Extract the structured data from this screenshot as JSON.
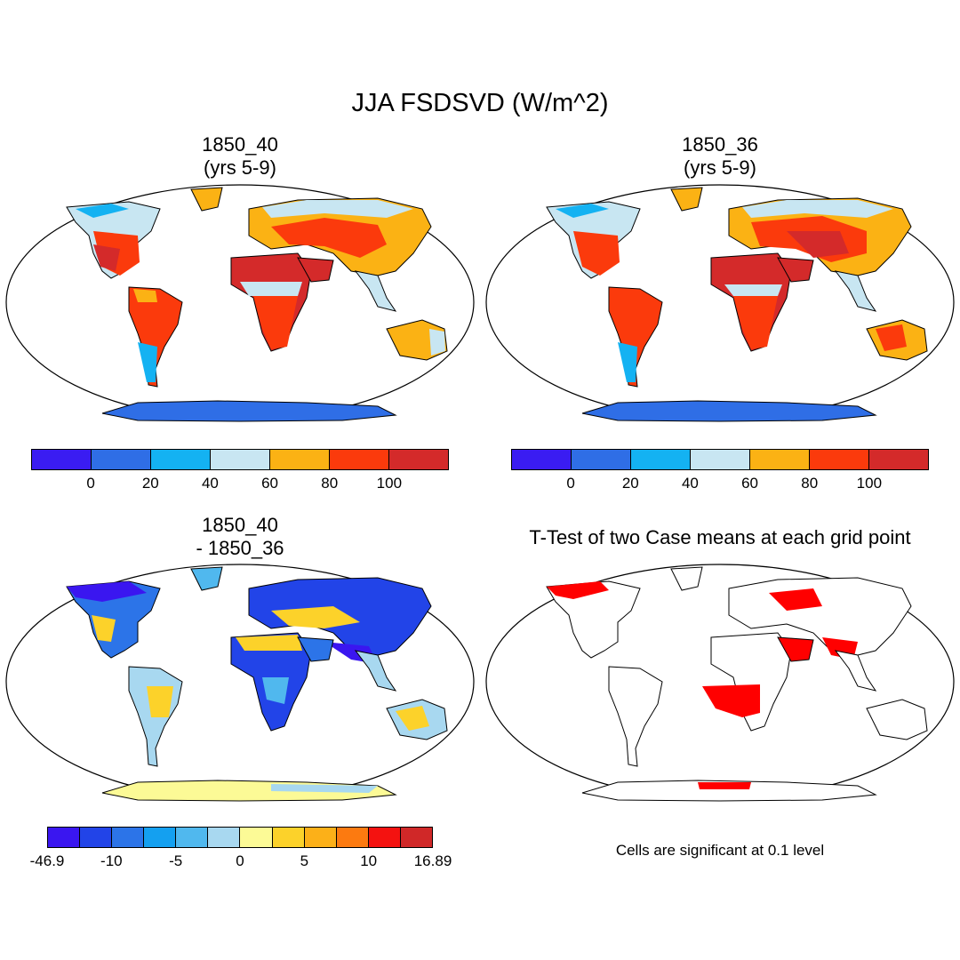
{
  "figure": {
    "title": "JJA FSDSVD (W/m^2)"
  },
  "panels": {
    "case1": {
      "title": "1850_40\n(yrs 5-9)"
    },
    "case2": {
      "title": "1850_36\n(yrs 5-9)"
    },
    "diff": {
      "title": "1850_40\n- 1850_36"
    },
    "ttest": {
      "title": "T-Test of two Case means at each grid point",
      "note": "Cells are significant at 0.1 level"
    }
  },
  "colorbars": {
    "abs": {
      "colors": [
        "#3a1cf2",
        "#2f6ee6",
        "#14b2f2",
        "#c8e6f2",
        "#fbb214",
        "#fb3a0c",
        "#d42a2a"
      ],
      "ticks": [
        "0",
        "20",
        "40",
        "60",
        "80",
        "100"
      ]
    },
    "diff": {
      "colors": [
        "#3a16f0",
        "#2244e8",
        "#2c74e8",
        "#14a0f0",
        "#50b8ee",
        "#a8d8f0",
        "#fcfa96",
        "#fcd22a",
        "#fcb018",
        "#fc7a10",
        "#f41210",
        "#d02828"
      ],
      "ticks": [
        "-46.9",
        "-10",
        "-5",
        "0",
        "5",
        "10",
        "16.89"
      ]
    }
  },
  "map_colors": {
    "land_outline": "#000000",
    "ocean": "#ffffff",
    "significant": "#ff0000"
  }
}
